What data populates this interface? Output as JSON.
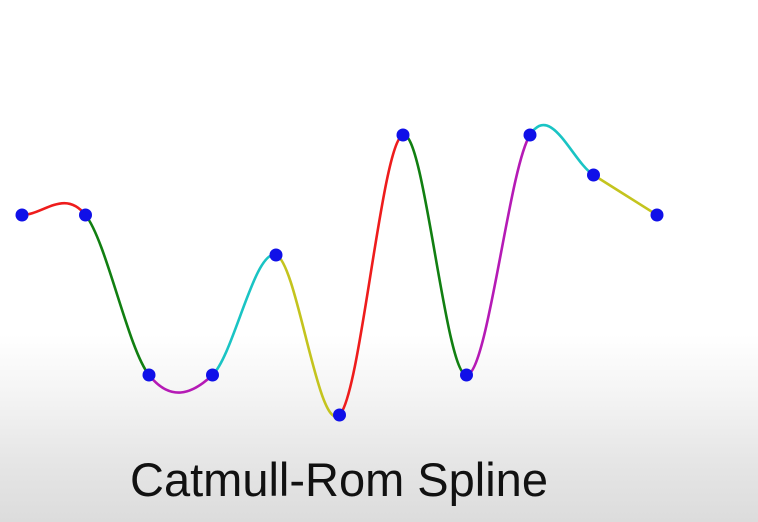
{
  "caption": "Catmull-Rom Spline",
  "segment_colors": [
    "#ee1c1c",
    "#117f11",
    "#b51ab5",
    "#1ac4c4",
    "#c4c41e"
  ],
  "point_color": "#1010e8",
  "points": [
    {
      "x": 0,
      "y": 0
    },
    {
      "x": 1,
      "y": 0
    },
    {
      "x": 2,
      "y": -4
    },
    {
      "x": 3,
      "y": -4
    },
    {
      "x": 4,
      "y": -1
    },
    {
      "x": 5,
      "y": -5
    },
    {
      "x": 6,
      "y": 2
    },
    {
      "x": 7,
      "y": -4
    },
    {
      "x": 8,
      "y": 2
    },
    {
      "x": 9,
      "y": 1
    },
    {
      "x": 10,
      "y": 0
    }
  ]
}
